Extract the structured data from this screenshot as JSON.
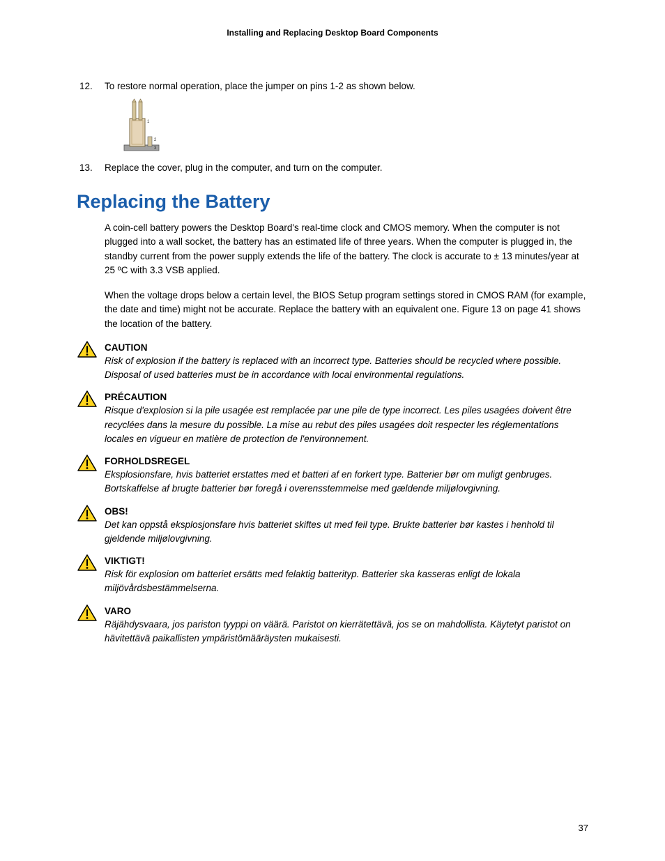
{
  "header": "Installing and Replacing Desktop Board Components",
  "items": [
    {
      "num": "12.",
      "text": "To restore normal operation, place the jumper on pins 1-2 as shown below."
    },
    {
      "num": "13.",
      "text": "Replace the cover, plug in the computer, and turn on the computer."
    }
  ],
  "heading": "Replacing the Battery",
  "para1": "A coin-cell battery powers the Desktop Board's real-time clock and CMOS memory.  When the computer is not plugged into a wall socket, the battery has an estimated life of three years.  When the computer is plugged in, the standby current from the power supply extends the life of the battery.  The clock is accurate to ± 13 minutes/year at 25 ºC with 3.3 VSB applied.",
  "para2": "When the voltage drops below a certain level, the BIOS Setup program settings stored in CMOS RAM (for example, the date and time) might not be accurate.  Replace the battery with an equivalent one.  Figure 13 on page 41 shows the location of the battery.",
  "warnings": [
    {
      "title": "CAUTION",
      "text": "Risk of explosion if the battery is replaced with an incorrect type.  Batteries should be recycled where possible.  Disposal of used batteries must be in accordance with local environmental regulations."
    },
    {
      "title": "PRÉCAUTION",
      "text": "Risque d'explosion si la pile usagée est remplacée par une pile de type incorrect.  Les piles usagées doivent être recyclées dans la mesure du possible.  La mise au rebut des piles usagées doit respecter les réglementations locales en vigueur en matière de protection de l'environnement."
    },
    {
      "title": "FORHOLDSREGEL",
      "text": "Eksplosionsfare, hvis batteriet erstattes med et batteri af en forkert type.  Batterier bør om muligt genbruges.  Bortskaffelse af brugte batterier bør foregå i overensstemmelse med gældende miljølovgivning."
    },
    {
      "title": "OBS!",
      "text": "Det kan oppstå eksplosjonsfare hvis batteriet skiftes ut med feil type.  Brukte batterier bør kastes i henhold til gjeldende miljølovgivning."
    },
    {
      "title": "VIKTIGT!",
      "text": "Risk för explosion om batteriet ersätts med felaktig batterityp.  Batterier ska kasseras enligt de lokala miljövårdsbestämmelserna."
    },
    {
      "title": "VARO",
      "text": "Räjähdysvaara, jos pariston tyyppi on väärä.  Paristot on kierrätettävä, jos se on mahdollista. Käytetyt paristot on hävitettävä paikallisten ympäristömääräysten mukaisesti."
    }
  ],
  "page_num": "37",
  "colors": {
    "heading": "#1b5eab",
    "warn_fill": "#ffd51e",
    "warn_stroke": "#000000",
    "jumper_body": "#e6d5b8",
    "jumper_base": "#808080"
  }
}
